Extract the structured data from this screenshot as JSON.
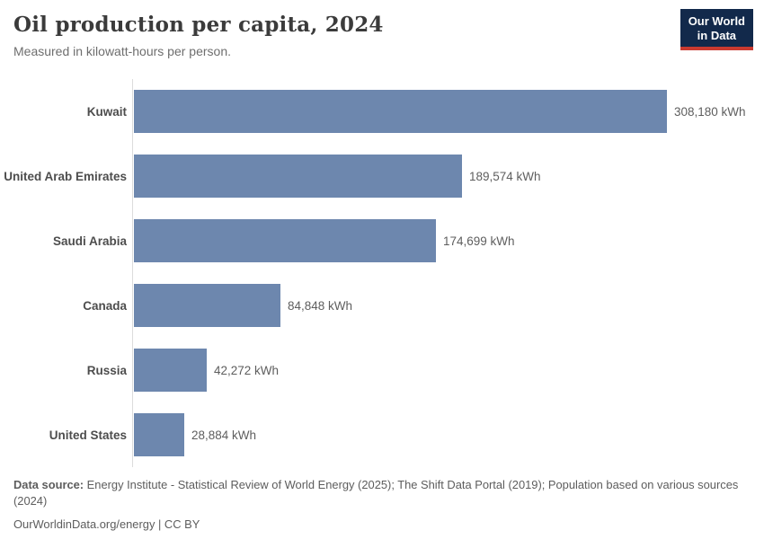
{
  "header": {
    "title": "Oil production per capita, 2024",
    "subtitle": "Measured in kilowatt-hours per person.",
    "logo": {
      "line1": "Our World",
      "line2": "in Data"
    }
  },
  "chart_data": {
    "type": "bar",
    "orientation": "horizontal",
    "title": "Oil production per capita, 2024",
    "subtitle": "Measured in kilowatt-hours per person.",
    "unit": "kWh",
    "categories": [
      "Kuwait",
      "United Arab Emirates",
      "Saudi Arabia",
      "Canada",
      "Russia",
      "United States"
    ],
    "values": [
      308180,
      189574,
      174699,
      84848,
      42272,
      28884
    ],
    "value_labels": [
      "308,180 kWh",
      "189,574 kWh",
      "174,699 kWh",
      "84,848 kWh",
      "42,272 kWh",
      "28,884 kWh"
    ],
    "xlim": [
      0,
      308180
    ],
    "grid": false,
    "legend": "none",
    "bar_color": "#6d87ae"
  },
  "footer": {
    "datasource_label": "Data source:",
    "datasource_text": " Energy Institute - Statistical Review of World Energy (2025); The Shift Data Portal (2019); Population based on various sources (2024)",
    "link_text": "OurWorldinData.org/energy | CC BY"
  },
  "colors": {
    "bar": "#6d87ae",
    "title_text": "#3b3b3b",
    "subtitle_text": "#6e6e6e",
    "axis_line": "#dcdcdc",
    "logo_background": "#12294b",
    "logo_underline": "#ca3a30"
  }
}
